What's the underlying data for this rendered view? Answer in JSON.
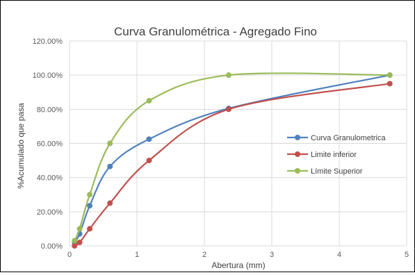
{
  "chart_data": {
    "type": "scatter",
    "title": "Curva Granulométrica - Agregado Fino",
    "xlabel": "Abertura (mm)",
    "ylabel": "%Acumulado que pasa",
    "xlim": [
      0,
      5
    ],
    "ylim": [
      0,
      1.2
    ],
    "x_ticks": [
      "0",
      "1",
      "2",
      "3",
      "4",
      "5"
    ],
    "y_ticks": [
      "0.00%",
      "20.00%",
      "40.00%",
      "60.00%",
      "80.00%",
      "100.00%",
      "120.00%"
    ],
    "grid": true,
    "legend_position": "right",
    "series": [
      {
        "name": "Curva Granulometrica",
        "color": "#4f81bd",
        "x": [
          0.075,
          0.15,
          0.3,
          0.6,
          1.18,
          2.36,
          4.75
        ],
        "y": [
          0.02,
          0.07,
          0.235,
          0.465,
          0.625,
          0.805,
          1.0
        ]
      },
      {
        "name": "Limite inferior",
        "color": "#c0504d",
        "x": [
          0.075,
          0.15,
          0.3,
          0.6,
          1.18,
          2.36,
          4.75
        ],
        "y": [
          0.0,
          0.02,
          0.1,
          0.25,
          0.5,
          0.8,
          0.95
        ]
      },
      {
        "name": "Límite Superior",
        "color": "#9bbb59",
        "x": [
          0.075,
          0.15,
          0.3,
          0.6,
          1.18,
          2.36,
          4.75
        ],
        "y": [
          0.03,
          0.1,
          0.3,
          0.6,
          0.85,
          1.0,
          1.0
        ]
      }
    ]
  }
}
